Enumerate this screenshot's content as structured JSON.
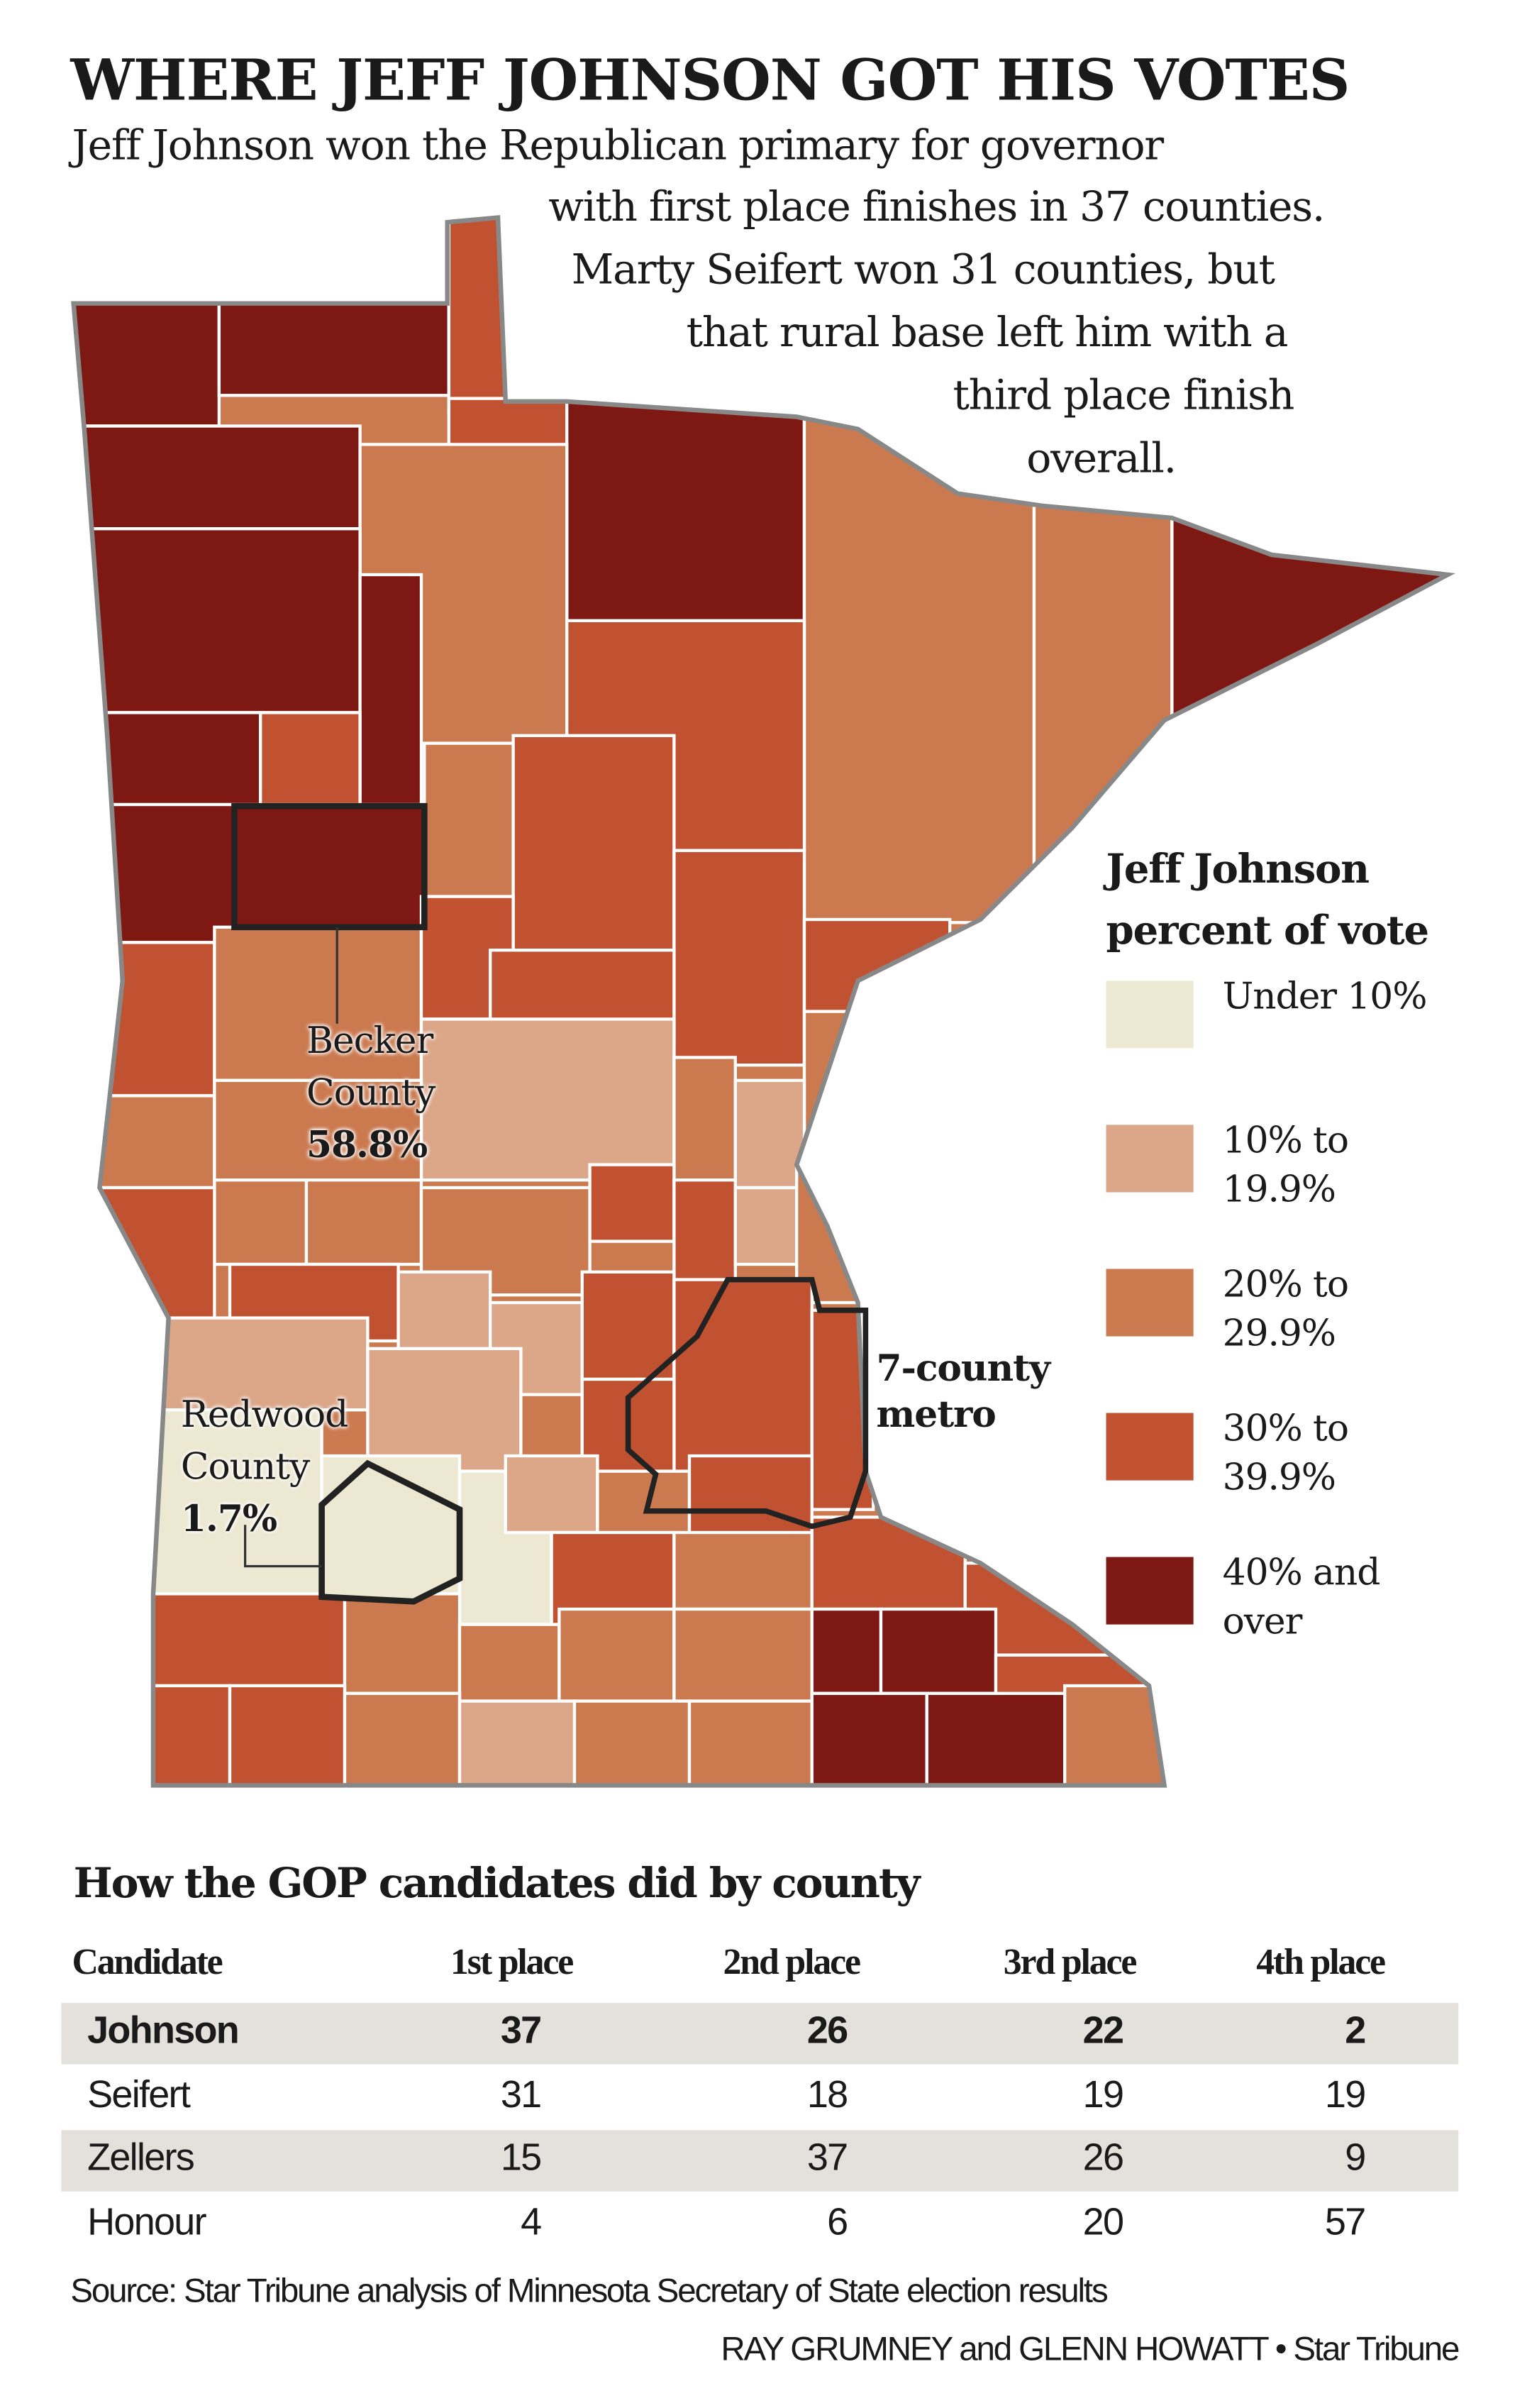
{
  "title": "WHERE JEFF JOHNSON GOT HIS VOTES",
  "intro_lines": [
    "Jeff Johnson won the Republican primary for governor",
    "with first place finishes in 37 counties.",
    "Marty Seifert won 31 counties, but",
    "that rural base left him with a",
    "third place finish",
    "overall."
  ],
  "map_labels": {
    "becker": {
      "name1": "Becker",
      "name2": "County",
      "value": "58.8%"
    },
    "redwood": {
      "name1": "Redwood",
      "name2": "County",
      "value": "1.7%"
    },
    "metro": {
      "line1": "7-county",
      "line2": "metro"
    }
  },
  "legend": {
    "title1": "Jeff Johnson",
    "title2": "percent of vote",
    "items": [
      {
        "label": "Under 10%",
        "color": "#ede8d2"
      },
      {
        "label": "10% to 19.9%",
        "color": "#dca688"
      },
      {
        "label": "20% to 29.9%",
        "color": "#cb7a50"
      },
      {
        "label": "30% to 39.9%",
        "color": "#c05231"
      },
      {
        "label": "40% and over",
        "color": "#7e1812"
      }
    ]
  },
  "table": {
    "title": "How the GOP candidates did by county",
    "headers": [
      "Candidate",
      "1st place",
      "2nd place",
      "3rd place",
      "4th place"
    ],
    "rows": [
      [
        "Johnson",
        "37",
        "26",
        "22",
        "2"
      ],
      [
        "Seifert",
        "31",
        "18",
        "19",
        "19"
      ],
      [
        "Zellers",
        "15",
        "37",
        "26",
        "9"
      ],
      [
        "Honour",
        "4",
        "6",
        "20",
        "57"
      ]
    ]
  },
  "source": "Source: Star Tribune analysis of Minnesota Secretary of State election results",
  "credit": "RAY GRUMNEY and  GLENN HOWATT • Star Tribune"
}
